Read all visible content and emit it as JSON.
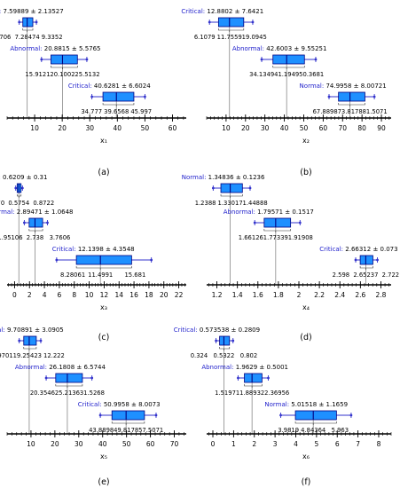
{
  "figure": {
    "colors": {
      "box_fill": "#1e90ff",
      "box_edge": "#000080",
      "whisker": "#3333cc",
      "class_label": "#2222cc",
      "stats_text": "#000000",
      "axis": "#000000"
    }
  },
  "chart_data": [
    {
      "type": "box",
      "panel_label": "(a)",
      "xlabel": "x₁",
      "xlim": [
        0,
        65
      ],
      "xticks": [
        10,
        20,
        30,
        40,
        50,
        60
      ],
      "series": [
        {
          "name": "Normal",
          "mean_sd": "7.59889 ± 2.13527",
          "low": 5.706,
          "median": 7.28474,
          "high": 9.3352,
          "stat_labels": [
            "5.706",
            "7.28474",
            "9.3352"
          ]
        },
        {
          "name": "Abnormal",
          "mean_sd": "20.8815 ± 5.5765",
          "low": 15.9121,
          "median": 20.1002,
          "high": 25.5132,
          "stat_labels": [
            "15.9121",
            "20.1002",
            "25.5132"
          ]
        },
        {
          "name": "Critical",
          "mean_sd": "40.6281 ± 6.6024",
          "low": 34.777,
          "median": 39.6568,
          "high": 45.997,
          "stat_labels": [
            "34.777",
            "39.6568",
            "45.997"
          ]
        }
      ]
    },
    {
      "type": "box",
      "panel_label": "(b)",
      "xlabel": "x₂",
      "xlim": [
        0,
        95
      ],
      "xticks": [
        10,
        20,
        30,
        40,
        50,
        60,
        70,
        80,
        90
      ],
      "series": [
        {
          "name": "Critical",
          "mean_sd": "12.8802 ± 7.6421",
          "low": 6.1079,
          "median": 11.7559,
          "high": 19.0945,
          "stat_labels": [
            "6.1079",
            "11.7559",
            "19.0945"
          ]
        },
        {
          "name": "Abnormal",
          "mean_sd": "42.6003 ± 9.55251",
          "low": 34.1349,
          "median": 41.1949,
          "high": 50.3681,
          "stat_labels": [
            "34.1349",
            "41.1949",
            "50.3681"
          ]
        },
        {
          "name": "Normal",
          "mean_sd": "74.9958 ± 8.00721",
          "low": 67.8898,
          "median": 73.8178,
          "high": 81.5071,
          "stat_labels": [
            "67.8898",
            "73.8178",
            "81.5071"
          ]
        }
      ]
    },
    {
      "type": "box",
      "panel_label": "(c)",
      "xlabel": "x₃",
      "xlim": [
        -1,
        23
      ],
      "xticks": [
        0,
        2,
        4,
        6,
        8,
        10,
        12,
        14,
        16,
        18,
        20,
        22
      ],
      "series": [
        {
          "name": "Normal",
          "mean_sd": "0.6209 ± 0.31",
          "low": 0.347,
          "median": 0.5754,
          "high": 0.8722,
          "stat_labels": [
            "0.3470",
            "0.5754",
            "0.8722"
          ]
        },
        {
          "name": "Abnormal",
          "mean_sd": "2.89471 ± 1.0648",
          "low": 1.95106,
          "median": 2.738,
          "high": 3.7606,
          "stat_labels": [
            "1.95106",
            "2.738",
            "3.7606"
          ]
        },
        {
          "name": "Critical",
          "mean_sd": "12.1398 ± 4.3548",
          "low": 8.28061,
          "median": 11.4991,
          "high": 15.681,
          "stat_labels": [
            "8.28061",
            "11.4991",
            "15.681"
          ]
        }
      ]
    },
    {
      "type": "box",
      "panel_label": "(d)",
      "xlabel": "x₄",
      "xlim": [
        1.1,
        2.9
      ],
      "xticks": [
        1.2,
        1.4,
        1.6,
        1.8,
        2.0,
        2.2,
        2.4,
        2.6,
        2.8
      ],
      "xtick_labels": [
        "1.2",
        "1.4",
        "1.6",
        "1.8",
        "2",
        "2.2",
        "2.4",
        "2.6",
        "2.8"
      ],
      "series": [
        {
          "name": "Normal",
          "mean_sd": "1.34836 ± 0.1236",
          "low": 1.2388,
          "median": 1.33017,
          "high": 1.44888,
          "stat_labels": [
            "1.2388",
            "1.33017",
            "1.44888"
          ]
        },
        {
          "name": "Abnormal",
          "mean_sd": "1.79571 ± 0.1517",
          "low": 1.66126,
          "median": 1.77339,
          "high": 1.91908,
          "stat_labels": [
            "1.66126",
            "1.77339",
            "1.91908"
          ]
        },
        {
          "name": "Critical",
          "mean_sd": "2.66312 ± 0.073",
          "low": 2.598,
          "median": 2.65237,
          "high": 2.722,
          "stat_labels": [
            "2.598",
            "2.65237",
            "2.722"
          ]
        }
      ]
    },
    {
      "type": "box",
      "panel_label": "(e)",
      "xlabel": "x₅",
      "xlim": [
        0,
        75
      ],
      "xticks": [
        10,
        20,
        30,
        40,
        50,
        60,
        70
      ],
      "series": [
        {
          "name": "Normal",
          "mean_sd": "9.70891 ± 3.0905",
          "low": 6.97011,
          "median": 9.25423,
          "high": 12.222,
          "stat_labels": [
            "6.97011",
            "9.25423",
            "12.222"
          ]
        },
        {
          "name": "Abnormal",
          "mean_sd": "26.1808 ± 6.5744",
          "low": 20.3546,
          "median": 25.2136,
          "high": 31.5268,
          "stat_labels": [
            "20.3546",
            "25.2136",
            "31.5268"
          ]
        },
        {
          "name": "Critical",
          "mean_sd": "50.9958 ± 8.0073",
          "low": 43.8898,
          "median": 49.8178,
          "high": 57.5071,
          "stat_labels": [
            "43.8898",
            "49.8178",
            "57.5071"
          ]
        }
      ]
    },
    {
      "type": "box",
      "panel_label": "(f)",
      "xlabel": "x₆",
      "xlim": [
        -0.3,
        8.6
      ],
      "xticks": [
        0,
        1,
        2,
        3,
        4,
        5,
        6,
        7,
        8
      ],
      "series": [
        {
          "name": "Critical",
          "mean_sd": "0.573538 ± 0.2809",
          "low": 0.324,
          "median": 0.5322,
          "high": 0.802,
          "stat_labels": [
            "0.324",
            "0.5322",
            "0.802"
          ]
        },
        {
          "name": "Abnormal",
          "mean_sd": "1.9629 ± 0.5001",
          "low": 1.51971,
          "median": 1.88932,
          "high": 2.36956,
          "stat_labels": [
            "1.51971",
            "1.88932",
            "2.36956"
          ]
        },
        {
          "name": "Normal",
          "mean_sd": "5.01518 ± 1.1659",
          "low": 3.9819,
          "median": 4.84364,
          "high": 5.963,
          "stat_labels": [
            "3.9819",
            "4.84364",
            "5.963"
          ]
        }
      ]
    }
  ]
}
